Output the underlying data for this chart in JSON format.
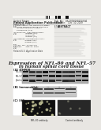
{
  "page_bg": "#e8e6e2",
  "header_bg": "#f5f4f1",
  "fig_bg": "#ffffff",
  "barcode_color": "#111111",
  "title_line1": "Expression of NFL-80 and NFL-57",
  "title_line2": "in human spinal cord tissue",
  "section_a_label": "(A) RT-PCR",
  "section_b_label": "(B) Immunoblot",
  "section_c_label": "(C) IHC",
  "gel_bg": "#b0b0b0",
  "gel_lane_dark": "#111111",
  "gel_lane_light": "#666666",
  "blot_bg": "#c8c8c8",
  "blot_lane_dark": "#222222",
  "ihc_left_bg": "#101010",
  "ihc_right_bg": "#282828",
  "text_dark": "#222222",
  "text_mid": "#444444",
  "text_light": "#666666",
  "line_color": "#999999"
}
